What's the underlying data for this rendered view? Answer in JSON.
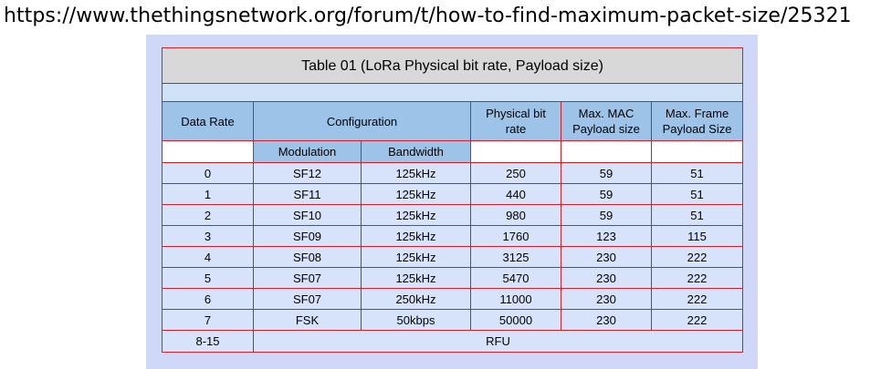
{
  "url": "https://www.thethingsnetwork.org/forum/t/how-to-find-maximum-packet-size/25321",
  "table": {
    "title": "Table 01 (LoRa Physical bit rate, Payload size)",
    "headers": {
      "data_rate": "Data Rate",
      "configuration": "Configuration",
      "physical_bit_rate": [
        "Physical bit",
        "rate"
      ],
      "max_mac_payload": [
        "Max. MAC",
        "Payload size"
      ],
      "max_frame_payload": [
        "Max. Frame",
        "Payload Size"
      ],
      "modulation": "Modulation",
      "bandwidth": "Bandwidth"
    },
    "rows": [
      [
        "0",
        "SF12",
        "125kHz",
        "250",
        "59",
        "51"
      ],
      [
        "1",
        "SF11",
        "125kHz",
        "440",
        "59",
        "51"
      ],
      [
        "2",
        "SF10",
        "125kHz",
        "980",
        "59",
        "51"
      ],
      [
        "3",
        "SF09",
        "125kHz",
        "1760",
        "123",
        "115"
      ],
      [
        "4",
        "SF08",
        "125kHz",
        "3125",
        "230",
        "222"
      ],
      [
        "5",
        "SF07",
        "125kHz",
        "5470",
        "230",
        "222"
      ],
      [
        "6",
        "SF07",
        "250kHz",
        "11000",
        "230",
        "222"
      ],
      [
        "7",
        "FSK",
        "50kbps",
        "50000",
        "230",
        "222"
      ]
    ],
    "last_row": {
      "data_rate": "8-15",
      "value": "RFU"
    }
  }
}
